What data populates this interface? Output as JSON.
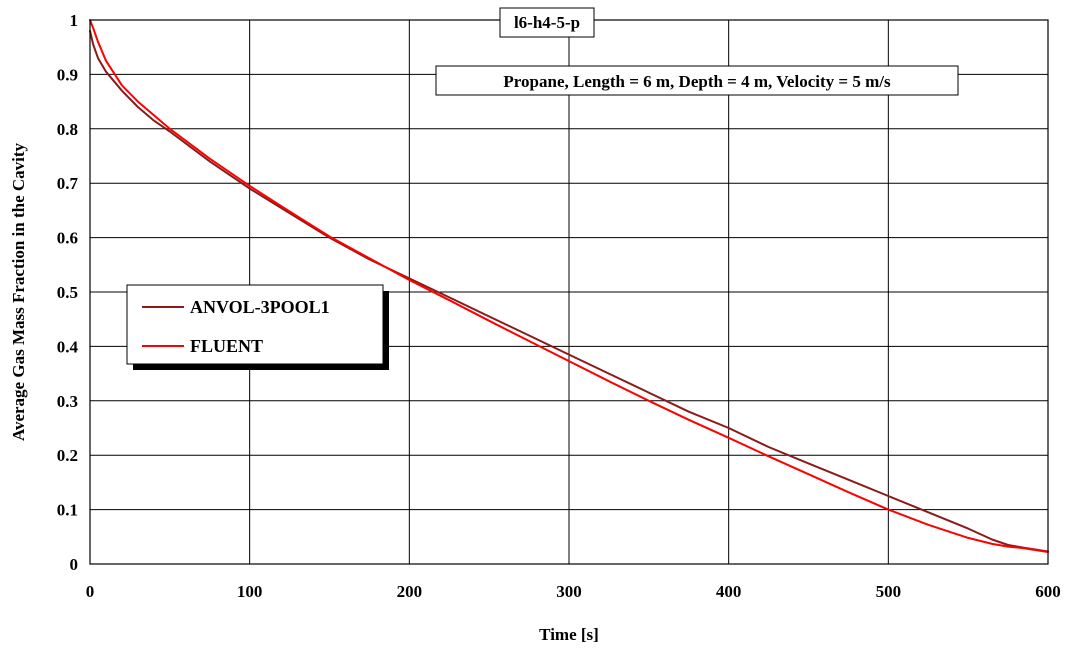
{
  "chart_data": {
    "type": "line",
    "title": "",
    "annotations": [
      "l6-h4-5-p",
      "Propane, Length = 6 m, Depth = 4 m, Velocity = 5 m/s"
    ],
    "xlabel": "Time [s]",
    "ylabel": "Average Gas Mass Fraction in the Cavity",
    "xlim": [
      0,
      600
    ],
    "ylim": [
      0,
      1
    ],
    "x_ticks": [
      "0",
      "100",
      "200",
      "300",
      "400",
      "500",
      "600"
    ],
    "y_ticks": [
      "0",
      "0.1",
      "0.2",
      "0.3",
      "0.4",
      "0.5",
      "0.6",
      "0.7",
      "0.8",
      "0.9",
      "1"
    ],
    "grid": true,
    "legend_position": "center-left",
    "series": [
      {
        "name": "ANVOL-3POOL1",
        "color": "#8b1a1a",
        "x": [
          0,
          2,
          5,
          10,
          20,
          30,
          40,
          50,
          75,
          100,
          125,
          150,
          175,
          200,
          225,
          250,
          275,
          300,
          325,
          350,
          375,
          400,
          425,
          450,
          475,
          500,
          525,
          550,
          565,
          575,
          585,
          600
        ],
        "y": [
          0.98,
          0.955,
          0.93,
          0.905,
          0.87,
          0.84,
          0.815,
          0.795,
          0.74,
          0.69,
          0.645,
          0.6,
          0.56,
          0.525,
          0.49,
          0.455,
          0.42,
          0.385,
          0.35,
          0.315,
          0.28,
          0.25,
          0.215,
          0.185,
          0.155,
          0.125,
          0.095,
          0.065,
          0.045,
          0.035,
          0.03,
          0.023
        ]
      },
      {
        "name": "FLUENT",
        "color": "#ff0000",
        "x": [
          0,
          2,
          5,
          10,
          20,
          30,
          40,
          50,
          75,
          100,
          125,
          150,
          175,
          200,
          225,
          250,
          275,
          300,
          325,
          350,
          375,
          400,
          425,
          450,
          475,
          500,
          525,
          550,
          565,
          575,
          585,
          600
        ],
        "y": [
          1.0,
          0.985,
          0.96,
          0.925,
          0.88,
          0.85,
          0.825,
          0.8,
          0.745,
          0.695,
          0.648,
          0.602,
          0.562,
          0.522,
          0.485,
          0.447,
          0.41,
          0.373,
          0.336,
          0.3,
          0.265,
          0.232,
          0.198,
          0.165,
          0.132,
          0.1,
          0.072,
          0.048,
          0.037,
          0.032,
          0.029,
          0.022
        ]
      }
    ]
  }
}
